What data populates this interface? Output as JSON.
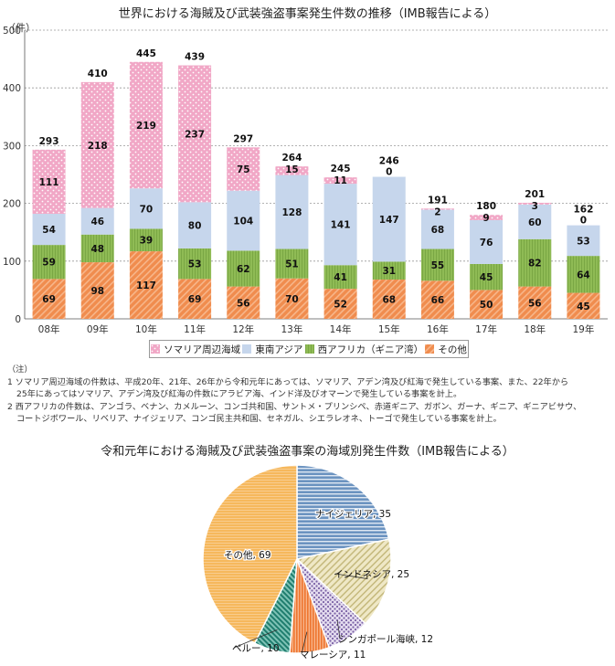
{
  "bar": {
    "title": "世界における海賊及び武装強盗事案発生件数の推移（IMB報告による）",
    "unit": "（件）",
    "legend": [
      "ソマリア周辺海域",
      "東南アジア",
      "西アフリカ（ギニア湾）",
      "その他"
    ]
  },
  "notes": {
    "head": "（注）",
    "n1a": "1 ソマリア周辺海域の件数は、平成20年、21年、26年から令和元年にあっては、ソマリア、アデン湾及び紅海で発生している事案、また、22年から",
    "n1b": "25年にあってはソマリア、アデン湾及び紅海の件数にアラビア海、インド洋及びオマーンで発生している事案を計上。",
    "n2a": "2 西アフリカの件数は、アンゴラ、ベナン、カメルーン、コンゴ共和国、サントメ・プリンシペ、赤道ギニア、ガボン、ガーナ、ギニア、ギニアビサウ、",
    "n2b": "コートジボワール、リベリア、ナイジェリア、コンゴ民主共和国、セネガル、シエラレオネ、トーゴで発生している事案を計上。"
  },
  "pie": {
    "title": "令和元年における海賊及び武装強盗事案の海域別発生件数（IMB報告による）"
  },
  "colors": {
    "somalia": "#f1a7c6",
    "sea": "#c6d6ec",
    "west_africa": "#8fbb55",
    "other": "#f08c4e",
    "pie_nigeria": "#5b86b6",
    "pie_indonesia": "#d8cf9a",
    "pie_singapore": "#9c86c0",
    "pie_malaysia": "#f07f3a",
    "pie_peru": "#2f8f7f",
    "pie_other": "#f6b85c"
  },
  "chart_data": [
    {
      "type": "bar",
      "stacked": true,
      "title": "世界における海賊及び武装強盗事案発生件数の推移（IMB報告による）",
      "ylabel": "（件）",
      "ylim": [
        0,
        500
      ],
      "yticks": [
        0,
        100,
        200,
        300,
        400,
        500
      ],
      "grid": true,
      "legend_position": "bottom",
      "categories": [
        "08年",
        "09年",
        "10年",
        "11年",
        "12年",
        "13年",
        "14年",
        "15年",
        "16年",
        "17年",
        "18年",
        "19年"
      ],
      "totals": [
        293,
        410,
        445,
        439,
        297,
        264,
        245,
        246,
        191,
        180,
        201,
        162
      ],
      "series": [
        {
          "name": "その他",
          "values": [
            69,
            98,
            117,
            69,
            56,
            70,
            52,
            68,
            66,
            50,
            56,
            45
          ]
        },
        {
          "name": "西アフリカ（ギニア湾）",
          "values": [
            59,
            48,
            39,
            53,
            62,
            51,
            41,
            31,
            55,
            45,
            82,
            64
          ]
        },
        {
          "name": "東南アジア",
          "values": [
            54,
            46,
            70,
            80,
            104,
            128,
            141,
            147,
            68,
            76,
            60,
            53
          ]
        },
        {
          "name": "ソマリア周辺海域",
          "values": [
            111,
            218,
            219,
            237,
            75,
            15,
            11,
            0,
            2,
            9,
            3,
            0
          ]
        }
      ]
    },
    {
      "type": "pie",
      "title": "令和元年における海賊及び武装強盗事案の海域別発生件数（IMB報告による）",
      "slices": [
        {
          "label": "ナイジェリア, 35",
          "value": 35
        },
        {
          "label": "インドネシア, 25",
          "value": 25
        },
        {
          "label": "シンガポール海峡, 12",
          "value": 12
        },
        {
          "label": "マレーシア, 11",
          "value": 11
        },
        {
          "label": "ペルー, 10",
          "value": 10
        },
        {
          "label": "その他, 69",
          "value": 69
        }
      ]
    }
  ]
}
